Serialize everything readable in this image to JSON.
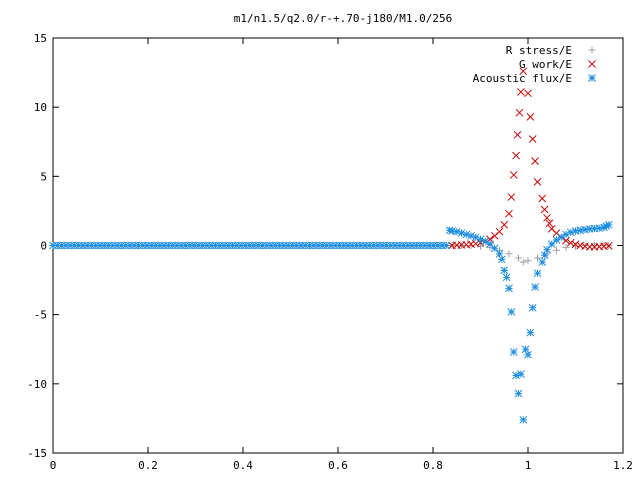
{
  "chart_data": {
    "type": "scatter",
    "title": "m1/n1.5/q2.0/r-+.70-j180/M1.0/256",
    "xlabel": "",
    "ylabel": "",
    "xlim": [
      0,
      1.2
    ],
    "ylim": [
      -15,
      15
    ],
    "xticks": [
      "0",
      "0.2",
      "0.4",
      "0.6",
      "0.8",
      "1",
      "1.2"
    ],
    "yticks": [
      "15",
      "10",
      "5",
      "0",
      "-5",
      "-10",
      "-15"
    ],
    "legend_position": "top-right",
    "grid": false,
    "series": [
      {
        "name": "R stress/E",
        "marker": "plus",
        "color": "#a0a0a0",
        "points": [
          [
            0.84,
            0.0
          ],
          [
            0.86,
            0.01
          ],
          [
            0.88,
            0.0
          ],
          [
            0.9,
            -0.05
          ],
          [
            0.92,
            -0.15
          ],
          [
            0.94,
            -0.35
          ],
          [
            0.96,
            -0.6
          ],
          [
            0.98,
            -0.9
          ],
          [
            0.99,
            -1.2
          ],
          [
            1.0,
            -1.1
          ],
          [
            1.02,
            -0.9
          ],
          [
            1.04,
            -0.6
          ],
          [
            1.06,
            -0.35
          ],
          [
            1.08,
            -0.15
          ],
          [
            1.1,
            -0.05
          ],
          [
            1.12,
            0.0
          ],
          [
            1.14,
            0.0
          ],
          [
            1.16,
            0.0
          ],
          [
            1.17,
            0.0
          ]
        ]
      },
      {
        "name": "G work/E",
        "marker": "cross",
        "color": "#cc0000",
        "points": [
          [
            0.84,
            0.0
          ],
          [
            0.85,
            0.02
          ],
          [
            0.86,
            0.04
          ],
          [
            0.87,
            0.06
          ],
          [
            0.88,
            0.1
          ],
          [
            0.89,
            0.14
          ],
          [
            0.9,
            0.2
          ],
          [
            0.91,
            0.3
          ],
          [
            0.92,
            0.45
          ],
          [
            0.93,
            0.7
          ],
          [
            0.94,
            1.0
          ],
          [
            0.95,
            1.5
          ],
          [
            0.96,
            2.3
          ],
          [
            0.965,
            3.5
          ],
          [
            0.97,
            5.1
          ],
          [
            0.975,
            6.5
          ],
          [
            0.978,
            8.0
          ],
          [
            0.982,
            9.6
          ],
          [
            0.985,
            11.1
          ],
          [
            0.99,
            12.6
          ],
          [
            1.0,
            11.0
          ],
          [
            1.005,
            9.3
          ],
          [
            1.01,
            7.7
          ],
          [
            1.015,
            6.1
          ],
          [
            1.02,
            4.6
          ],
          [
            1.03,
            3.4
          ],
          [
            1.035,
            2.6
          ],
          [
            1.04,
            2.0
          ],
          [
            1.045,
            1.6
          ],
          [
            1.05,
            1.2
          ],
          [
            1.06,
            0.9
          ],
          [
            1.07,
            0.6
          ],
          [
            1.08,
            0.35
          ],
          [
            1.09,
            0.2
          ],
          [
            1.1,
            0.08
          ],
          [
            1.11,
            0.0
          ],
          [
            1.12,
            -0.05
          ],
          [
            1.13,
            -0.1
          ],
          [
            1.14,
            -0.1
          ],
          [
            1.15,
            -0.08
          ],
          [
            1.16,
            -0.05
          ],
          [
            1.17,
            -0.03
          ]
        ]
      },
      {
        "name": "Acoustic flux/E",
        "marker": "star",
        "color": "#1a8ce0",
        "points": [
          [
            0.0,
            0.0
          ],
          [
            0.1,
            0.0
          ],
          [
            0.2,
            0.0
          ],
          [
            0.3,
            0.0
          ],
          [
            0.4,
            0.0
          ],
          [
            0.5,
            0.0
          ],
          [
            0.6,
            0.0
          ],
          [
            0.7,
            0.0
          ],
          [
            0.8,
            0.0
          ],
          [
            0.83,
            0.0
          ],
          [
            0.835,
            1.1
          ],
          [
            0.84,
            1.05
          ],
          [
            0.85,
            1.0
          ],
          [
            0.86,
            0.9
          ],
          [
            0.87,
            0.8
          ],
          [
            0.88,
            0.7
          ],
          [
            0.89,
            0.6
          ],
          [
            0.9,
            0.45
          ],
          [
            0.91,
            0.3
          ],
          [
            0.92,
            0.1
          ],
          [
            0.93,
            -0.2
          ],
          [
            0.94,
            -0.6
          ],
          [
            0.945,
            -1.0
          ],
          [
            0.95,
            -1.8
          ],
          [
            0.955,
            -2.3
          ],
          [
            0.96,
            -3.1
          ],
          [
            0.965,
            -4.8
          ],
          [
            0.97,
            -7.7
          ],
          [
            0.975,
            -9.4
          ],
          [
            0.98,
            -10.7
          ],
          [
            0.985,
            -9.3
          ],
          [
            0.99,
            -12.6
          ],
          [
            0.995,
            -7.5
          ],
          [
            1.0,
            -7.9
          ],
          [
            1.005,
            -6.3
          ],
          [
            1.01,
            -4.5
          ],
          [
            1.015,
            -3.0
          ],
          [
            1.02,
            -2.0
          ],
          [
            1.03,
            -1.2
          ],
          [
            1.035,
            -0.7
          ],
          [
            1.04,
            -0.3
          ],
          [
            1.05,
            0.1
          ],
          [
            1.06,
            0.4
          ],
          [
            1.07,
            0.6
          ],
          [
            1.08,
            0.8
          ],
          [
            1.09,
            0.95
          ],
          [
            1.1,
            1.05
          ],
          [
            1.11,
            1.1
          ],
          [
            1.12,
            1.15
          ],
          [
            1.13,
            1.2
          ],
          [
            1.14,
            1.22
          ],
          [
            1.15,
            1.25
          ],
          [
            1.16,
            1.3
          ],
          [
            1.165,
            1.4
          ],
          [
            1.17,
            1.5
          ]
        ]
      }
    ]
  }
}
